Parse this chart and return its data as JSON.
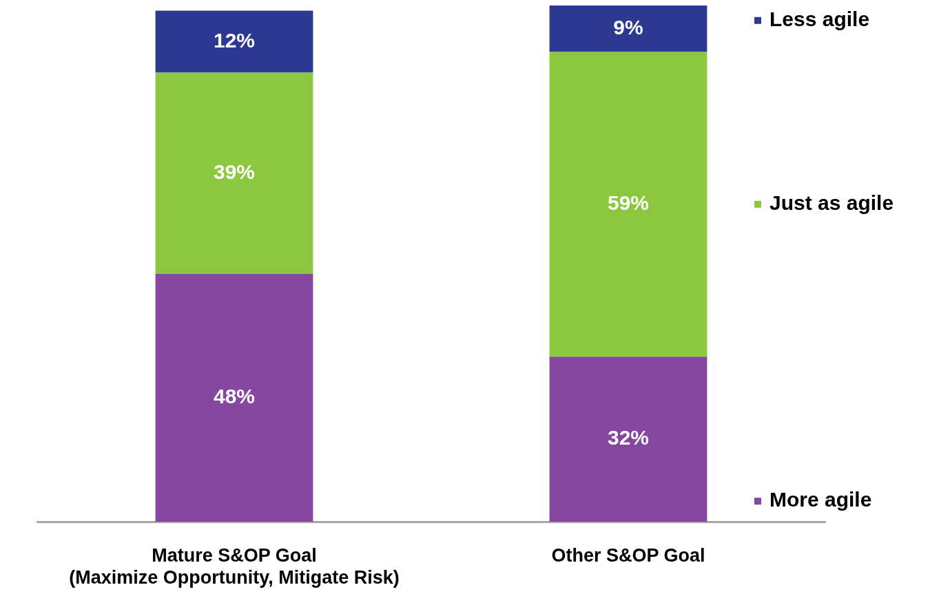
{
  "chart_data": {
    "type": "bar",
    "stacked": true,
    "categories": [
      "Mature S&OP Goal\n(Maximize Opportunity, Mitigate Risk)",
      "Other S&OP Goal"
    ],
    "series": [
      {
        "name": "More agile",
        "color": "#8547a0",
        "values": [
          48,
          32
        ],
        "value_labels": [
          "48%",
          "32%"
        ]
      },
      {
        "name": "Just as agile",
        "color": "#8dc63f",
        "values": [
          39,
          59
        ],
        "value_labels": [
          "39%",
          "59%"
        ]
      },
      {
        "name": "Less agile",
        "color": "#2b3990",
        "values": [
          12,
          9
        ],
        "value_labels": [
          "12%",
          "9%"
        ]
      }
    ],
    "ylim": [
      0,
      100
    ],
    "tick_labels": "x",
    "legend": "right"
  }
}
